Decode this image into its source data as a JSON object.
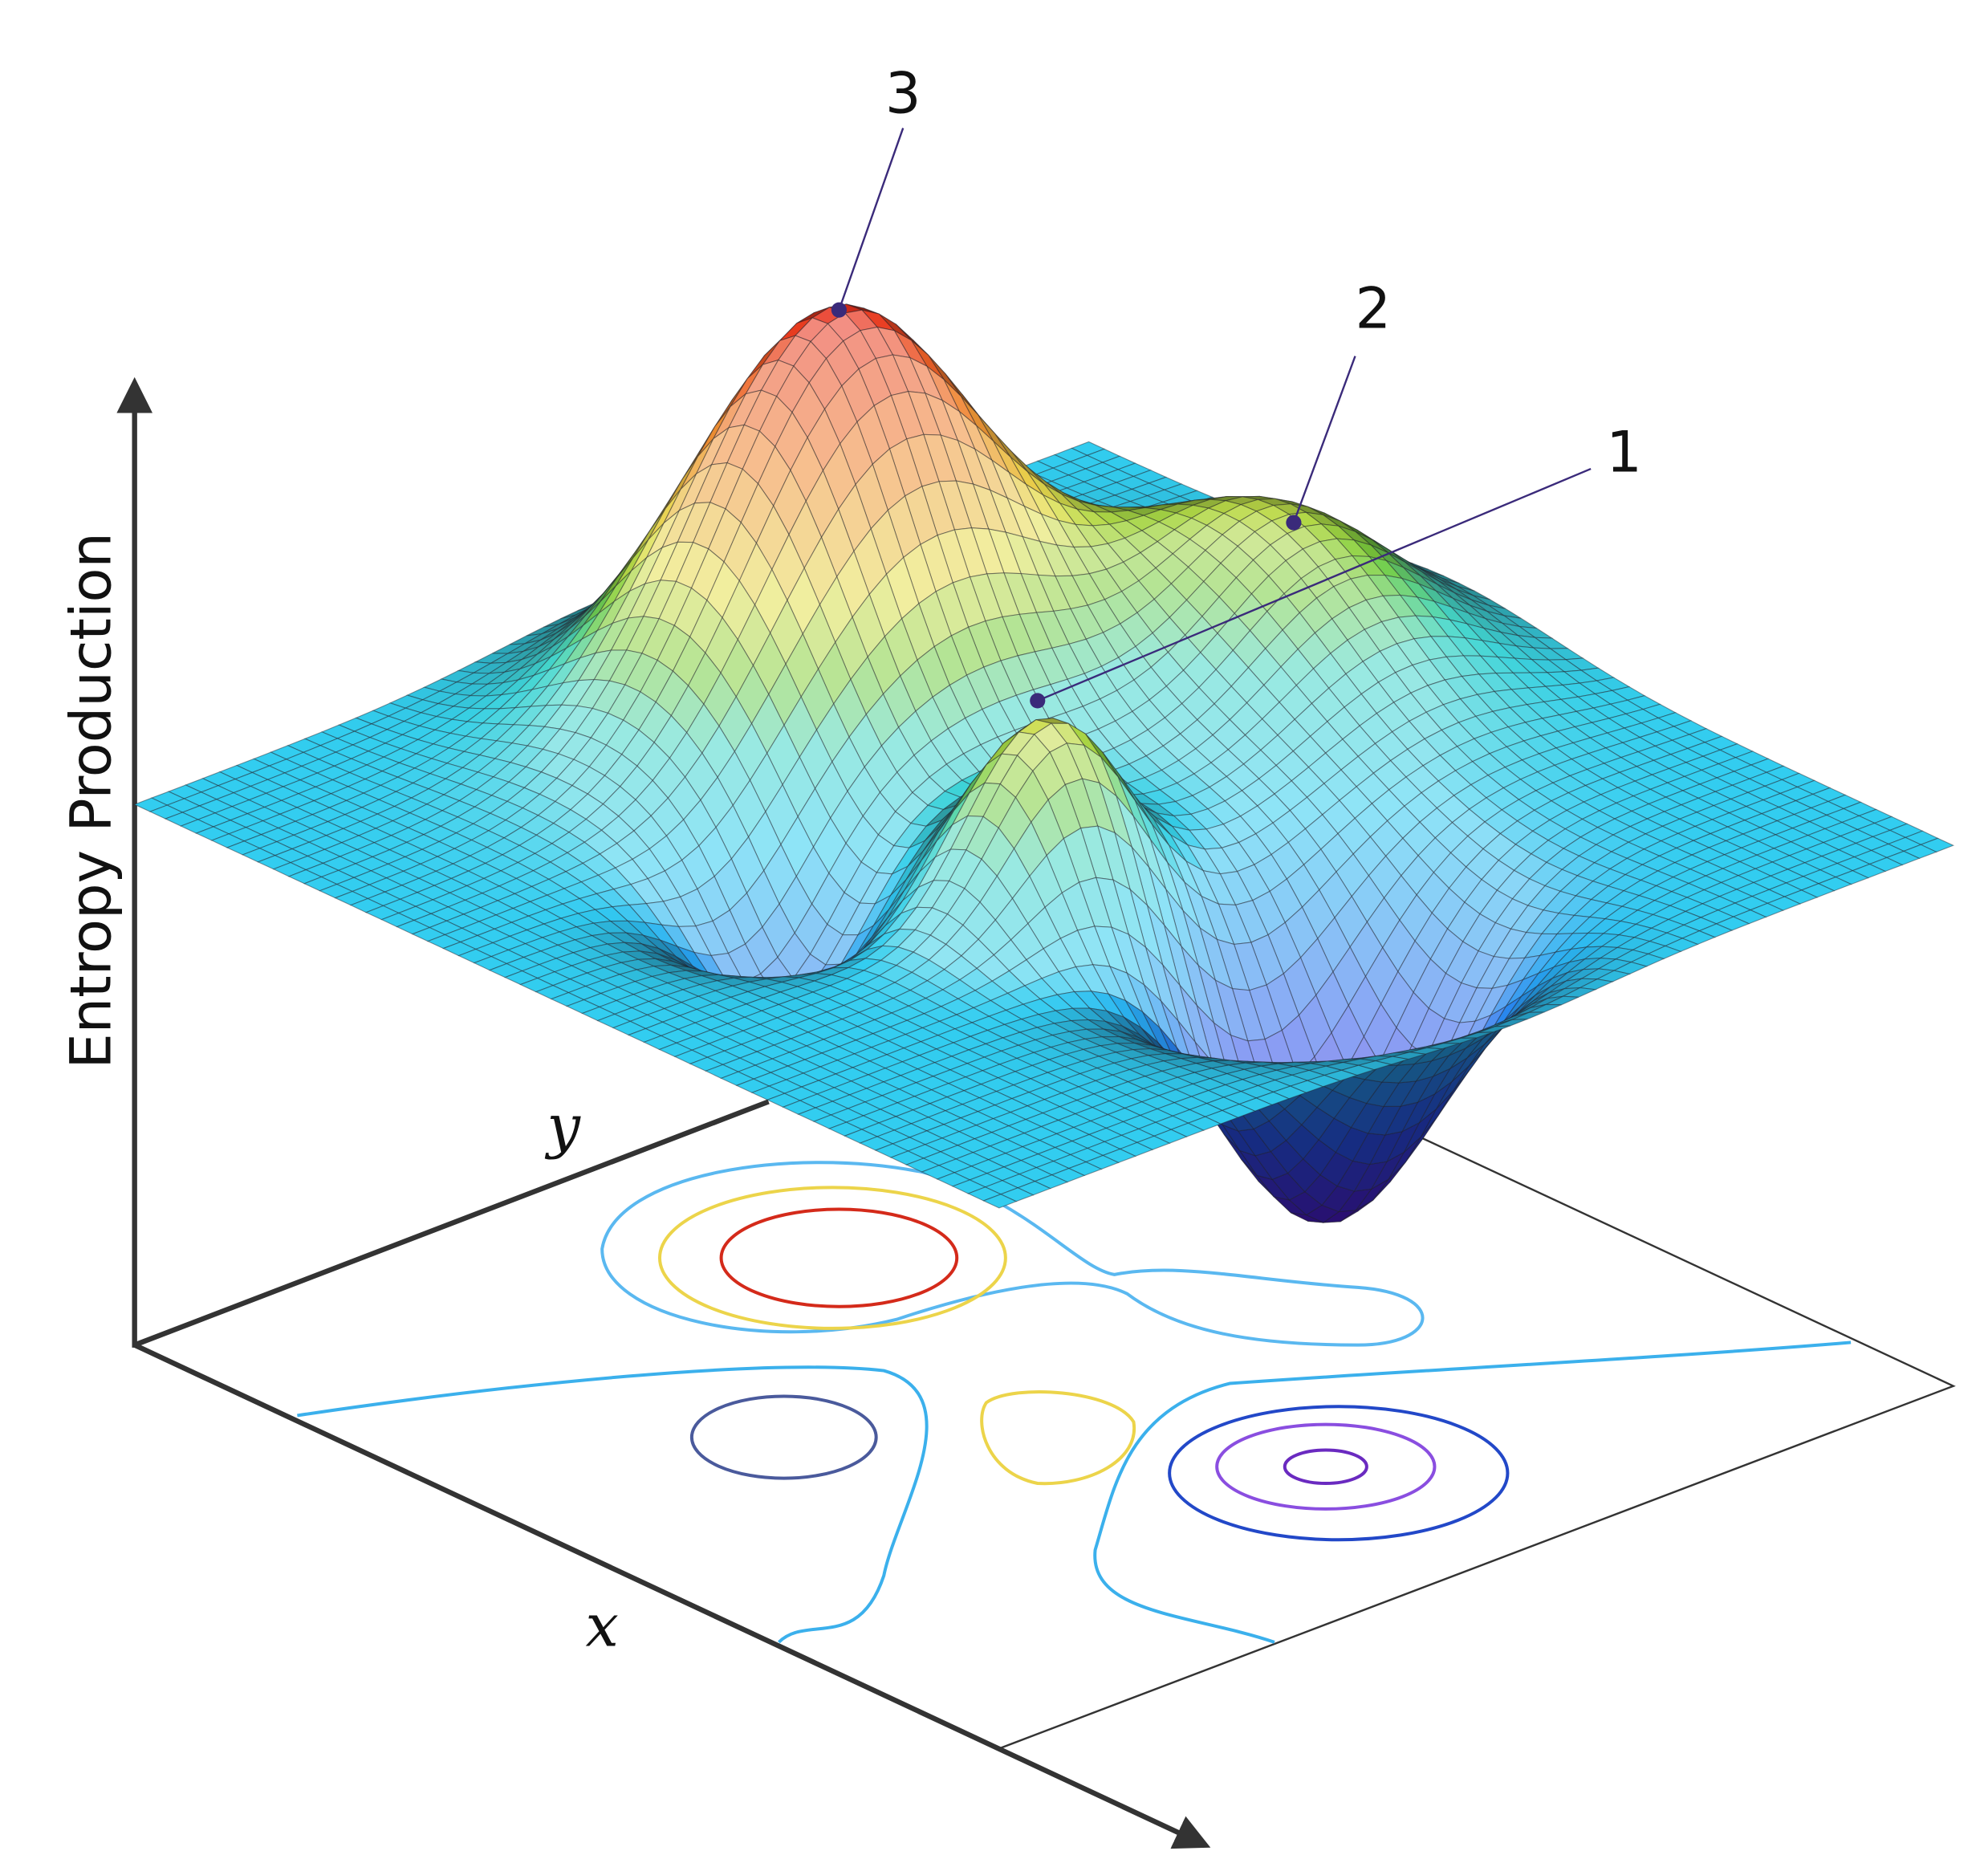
{
  "axes": {
    "z_label": "Entropy Production",
    "y_label": "y",
    "x_label": "x"
  },
  "annotations": [
    "1",
    "2",
    "3"
  ]
}
